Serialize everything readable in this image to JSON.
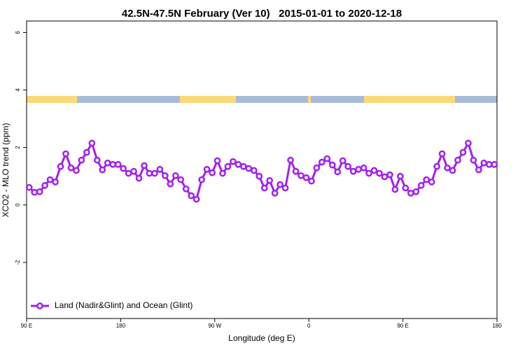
{
  "chart_data": {
    "type": "line",
    "title": "42.5N-47.5N February (Ver 10)   2015-01-01 to 2020-12-18",
    "x_label": "Longitude (deg E)",
    "y_label": "XCO2 - MLO trend (ppm)",
    "x": [
      92.5,
      97.5,
      102.5,
      107.5,
      112.5,
      117.5,
      122.5,
      127.5,
      132.5,
      137.5,
      142.5,
      147.5,
      152.5,
      157.5,
      162.5,
      167.5,
      172.5,
      177.5,
      182.5,
      187.5,
      192.5,
      197.5,
      202.5,
      207.5,
      212.5,
      217.5,
      222.5,
      227.5,
      232.5,
      237.5,
      242.5,
      247.5,
      252.5,
      257.5,
      262.5,
      267.5,
      272.5,
      277.5,
      282.5,
      287.5,
      292.5,
      297.5,
      302.5,
      307.5,
      312.5,
      317.5,
      322.5,
      327.5,
      332.5,
      337.5,
      342.5,
      347.5,
      352.5,
      357.5,
      362.5,
      367.5,
      372.5,
      377.5,
      382.5,
      387.5,
      392.5,
      397.5,
      402.5,
      407.5,
      412.5,
      417.5,
      422.5,
      427.5,
      432.5,
      437.5,
      442.5,
      447.5,
      452.5,
      457.5,
      462.5,
      467.5,
      472.5,
      477.5,
      482.5,
      487.5,
      492.5,
      497.5,
      502.5,
      507.5,
      512.5,
      517.5,
      522.5,
      527.5,
      532.5,
      537.5
    ],
    "series": [
      {
        "name": "Land (Nadir&Glint) and Ocean (Glint)",
        "color": "#a020f0",
        "values": [
          0.61,
          0.44,
          0.46,
          0.68,
          0.88,
          0.8,
          1.34,
          1.78,
          1.29,
          1.2,
          1.56,
          1.83,
          2.15,
          1.56,
          1.22,
          1.46,
          1.41,
          1.41,
          1.27,
          1.1,
          1.17,
          0.93,
          1.37,
          1.1,
          1.1,
          1.24,
          1.02,
          0.73,
          1.02,
          0.88,
          0.56,
          0.32,
          0.2,
          0.88,
          1.24,
          1.12,
          1.54,
          1.1,
          1.34,
          1.51,
          1.41,
          1.34,
          1.27,
          1.2,
          1.0,
          0.59,
          0.85,
          0.41,
          0.71,
          0.59,
          1.56,
          1.17,
          1.02,
          0.95,
          0.83,
          1.29,
          1.49,
          1.61,
          1.39,
          1.15,
          1.54,
          1.34,
          1.17,
          1.24,
          1.29,
          1.1,
          1.2,
          1.1,
          0.98,
          1.05,
          0.54,
          1.0,
          0.59,
          0.41,
          0.46,
          0.68,
          0.88,
          0.8,
          1.34,
          1.78,
          1.29,
          1.2,
          1.56,
          1.83,
          2.15,
          1.56,
          1.22,
          1.46,
          1.41,
          1.41
        ]
      }
    ],
    "xlim": [
      90,
      540
    ],
    "xticks": [
      {
        "value": 90,
        "label": "90 E"
      },
      180,
      {
        "value": 270,
        "label": "90 W"
      },
      {
        "value": 360,
        "label": "0"
      },
      {
        "value": 450,
        "label": "90 E"
      },
      {
        "value": 540,
        "label": "180"
      }
    ],
    "ylim": [
      -3.95,
      6.4
    ],
    "yticks": [
      -2,
      0,
      2,
      4,
      6
    ],
    "grid": false,
    "legend": "bottom-left"
  }
}
